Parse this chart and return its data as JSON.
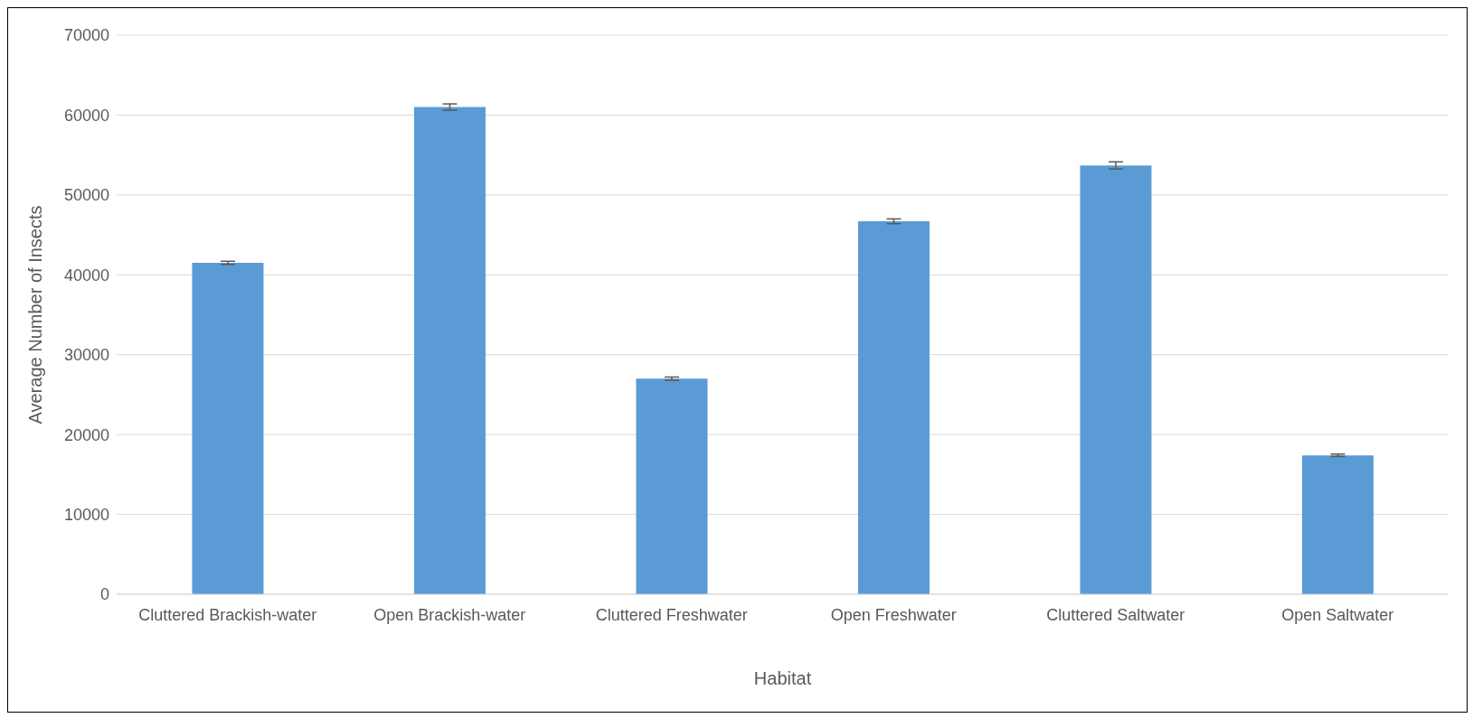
{
  "chart_data": {
    "type": "bar",
    "xlabel": "Habitat",
    "ylabel": "Average Number of Insects",
    "categories": [
      "Cluttered Brackish-water",
      "Open Brackish-water",
      "Cluttered Freshwater",
      "Open Freshwater",
      "Cluttered Saltwater",
      "Open Saltwater"
    ],
    "values": [
      41500,
      61000,
      27000,
      46700,
      53700,
      17400
    ],
    "errors": [
      200,
      400,
      200,
      300,
      450,
      150
    ],
    "color": "#5b9bd5",
    "ylim": [
      0,
      70000
    ],
    "yticks": [
      0,
      10000,
      20000,
      30000,
      40000,
      50000,
      60000,
      70000
    ],
    "grid": "y",
    "legend": false
  }
}
